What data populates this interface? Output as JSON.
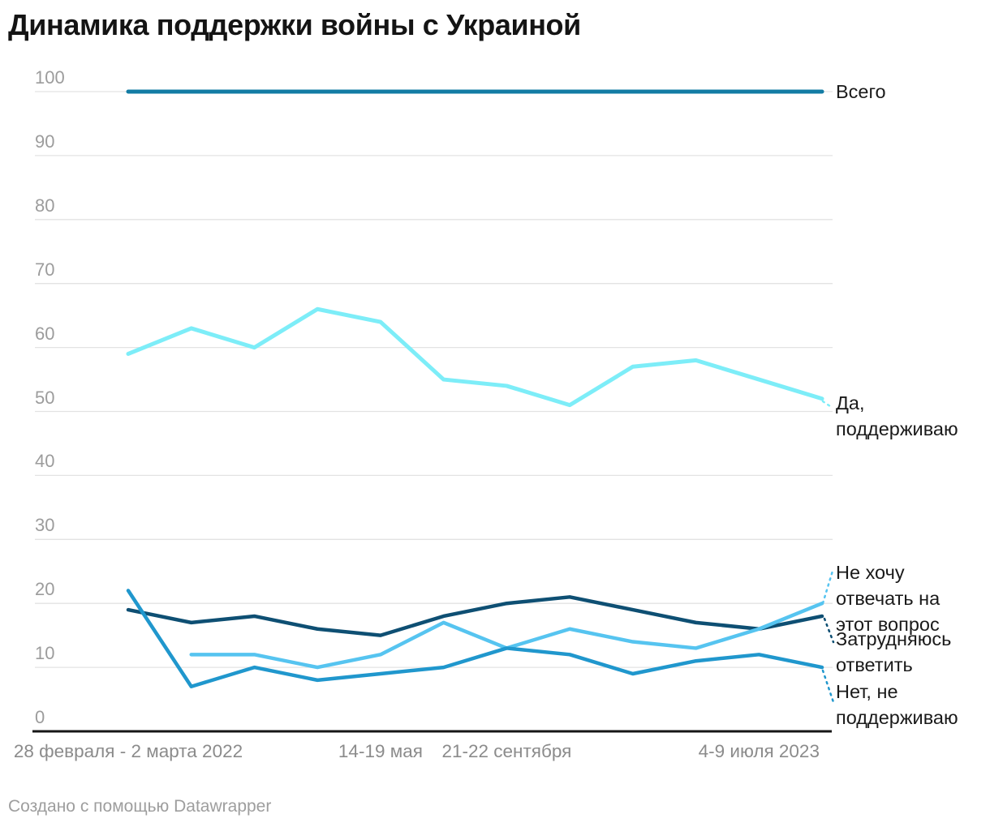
{
  "page": {
    "title": "Динамика поддержки войны с Украиной",
    "attribution": "Создано с помощью Datawrapper"
  },
  "chart_data": {
    "type": "line",
    "title": "Динамика поддержки войны с Украиной",
    "attribution": "Создано с помощью Datawrapper",
    "grid": true,
    "legend_position": "right-end-labels",
    "num_points": 12,
    "x_axis": {
      "tick_labels": [
        {
          "index": 0,
          "label": "28 февраля - 2 марта 2022"
        },
        {
          "index": 4,
          "label": "14-19 мая"
        },
        {
          "index": 6,
          "label": "21-22 сентября"
        },
        {
          "index": 10,
          "label": "4-9 июля 2023"
        }
      ]
    },
    "y_axis": {
      "min": 0,
      "max": 100,
      "ticks": [
        0,
        10,
        20,
        30,
        40,
        50,
        60,
        70,
        80,
        90,
        100
      ]
    },
    "series": [
      {
        "name": "Всего",
        "label_lines": [
          "Всего"
        ],
        "color": "#137CA4",
        "stroke_width": 5,
        "values": [
          100,
          100,
          100,
          100,
          100,
          100,
          100,
          100,
          100,
          100,
          100,
          100
        ]
      },
      {
        "name": "Да, поддерживаю",
        "label_lines": [
          "Да,",
          "поддерживаю"
        ],
        "color": "#7DEDF8",
        "stroke_width": 5,
        "values": [
          59,
          63,
          60,
          66,
          64,
          55,
          54,
          51,
          57,
          58,
          55,
          52
        ]
      },
      {
        "name": "Не хочу отвечать на этот вопрос",
        "label_lines": [
          "Не хочу",
          "отвечать на",
          "этот вопрос"
        ],
        "color": "#56C4F0",
        "stroke_width": 4.5,
        "values": [
          null,
          12,
          12,
          10,
          12,
          17,
          13,
          16,
          14,
          13,
          16,
          20
        ]
      },
      {
        "name": "Затрудняюсь ответить",
        "label_lines": [
          "Затрудняюсь",
          "ответить"
        ],
        "color": "#0E4F73",
        "stroke_width": 4.5,
        "values": [
          19,
          17,
          18,
          16,
          15,
          18,
          20,
          21,
          19,
          17,
          16,
          18
        ]
      },
      {
        "name": "Нет, не поддерживаю",
        "label_lines": [
          "Нет, не",
          "поддерживаю"
        ],
        "color": "#2097CD",
        "stroke_width": 4.5,
        "values": [
          22,
          7,
          10,
          8,
          9,
          10,
          13,
          12,
          9,
          11,
          12,
          10
        ]
      }
    ]
  }
}
